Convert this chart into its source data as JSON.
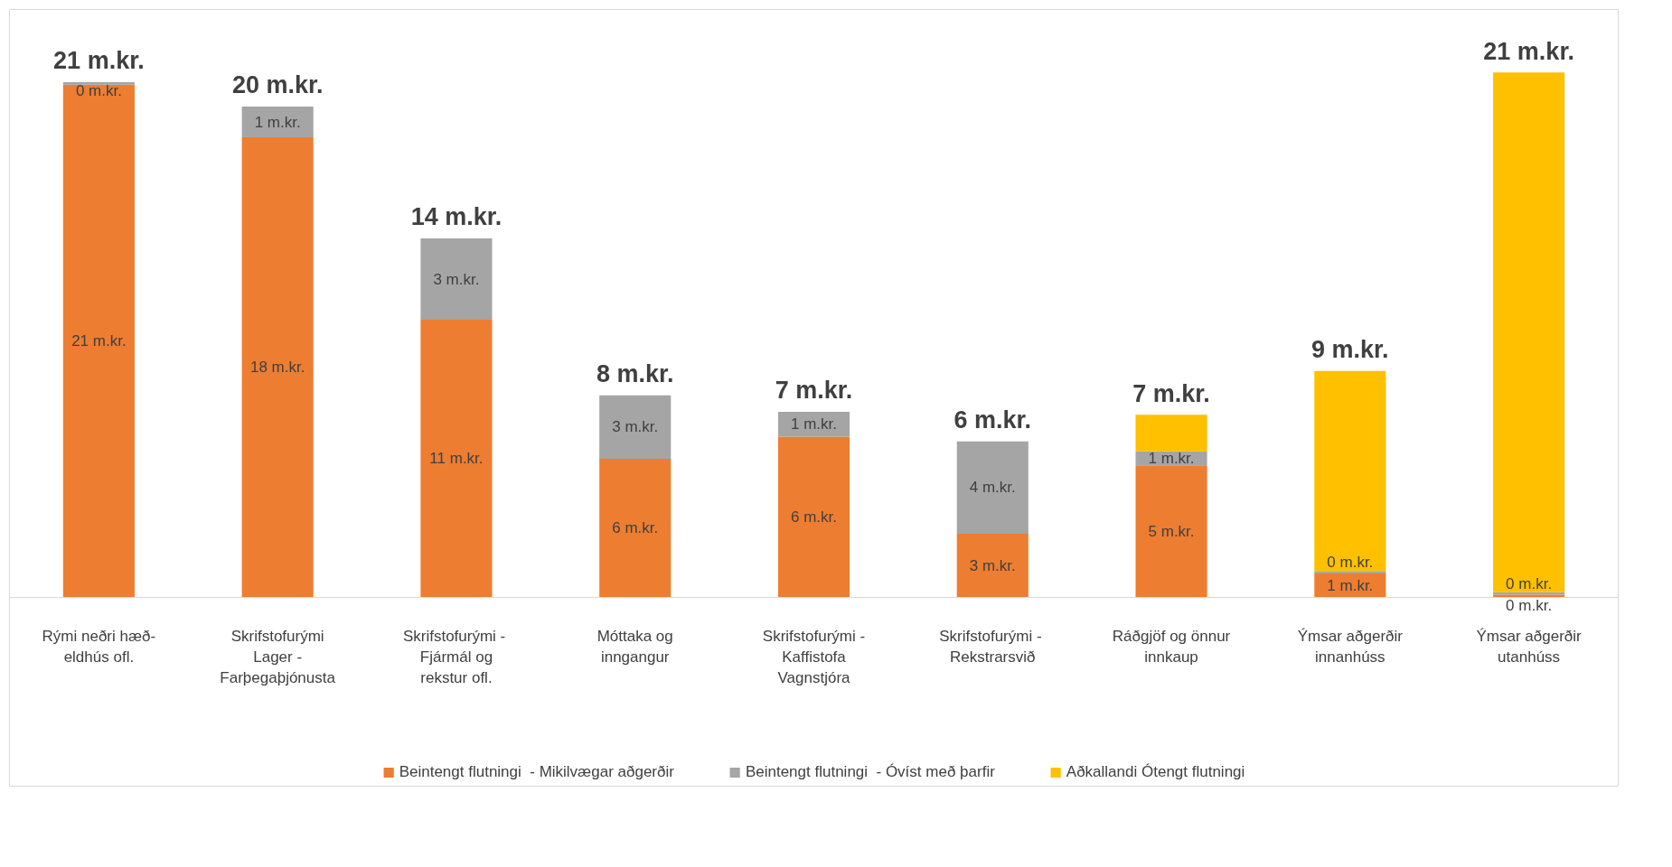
{
  "chart_data": {
    "type": "bar",
    "stacked": true,
    "legend": "bottom",
    "grid": false,
    "categories": [
      "Rými neðri hæð- eldhús ofl.",
      "Skrifstofurými Lager - Farþegaþjónusta",
      "Skrifstofurými  - Fjármál og rekstur ofl.",
      "Móttaka og inngangur",
      "Skrifstofurými - Kaffistofa Vagnstjóra",
      "Skrifstofurými  - Rekstrarsvið",
      "Ráðgjöf og önnur innkaup",
      "Ýmsar aðgerðir innanhúss",
      "Ýmsar aðgerðir utanhúss"
    ],
    "series": [
      {
        "name": "Beintengt flutningi  - Mikilvægar aðgerðir",
        "color": "#ed7d31",
        "values": [
          20.56,
          18.45,
          11.13,
          5.55,
          6.44,
          2.55,
          5.29,
          0.95,
          0.1
        ],
        "value_labels": [
          "21 m.kr.",
          "18 m.kr.",
          "11 m.kr.",
          "6 m.kr.",
          "6 m.kr.",
          "3 m.kr.",
          "5 m.kr.",
          "1 m.kr.",
          "0 m.kr."
        ]
      },
      {
        "name": "Beintengt flutningi  - Óvíst með þarfir",
        "color": "#a5a5a5",
        "values": [
          0.1,
          1.23,
          3.26,
          2.55,
          1.0,
          3.7,
          0.56,
          0.1,
          0.1
        ],
        "value_labels": [
          "0 m.kr.",
          "1 m.kr.",
          "3 m.kr.",
          "3 m.kr.",
          "1 m.kr.",
          "4 m.kr.",
          "1 m.kr.",
          "0 m.kr.",
          "0 m.kr."
        ]
      },
      {
        "name": "Aðkallandi Ótengt flutningi",
        "color": "#ffc000",
        "values": [
          null,
          null,
          null,
          null,
          null,
          null,
          1.47,
          8.03,
          20.85
        ],
        "value_labels": [
          null,
          null,
          null,
          null,
          null,
          null,
          null,
          null,
          null
        ]
      }
    ],
    "totals": [
      "21 m.kr.",
      "20 m.kr.",
      "14 m.kr.",
      "8 m.kr.",
      "7 m.kr.",
      "6 m.kr.",
      "7 m.kr.",
      "9 m.kr.",
      "21 m.kr."
    ]
  }
}
